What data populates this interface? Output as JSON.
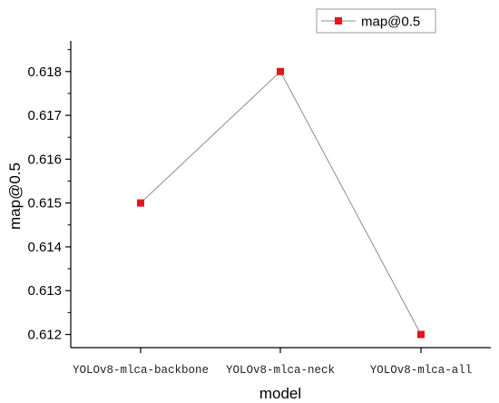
{
  "chart_data": {
    "type": "line",
    "categories": [
      "YOLOv8-mlca-backbone",
      "YOLOv8-mlca-neck",
      "YOLOv8-mlca-all"
    ],
    "series": [
      {
        "name": "map@0.5",
        "values": [
          0.615,
          0.618,
          0.612
        ],
        "color": "#e8141b"
      }
    ],
    "xlabel": "model",
    "ylabel": "map@0.5",
    "ylim": [
      0.6117,
      0.6187
    ],
    "yticks": [
      "0.612",
      "0.613",
      "0.614",
      "0.615",
      "0.616",
      "0.617",
      "0.618"
    ],
    "line_color": "#8c8c8c",
    "grid": false,
    "legend_position": "top-right"
  }
}
